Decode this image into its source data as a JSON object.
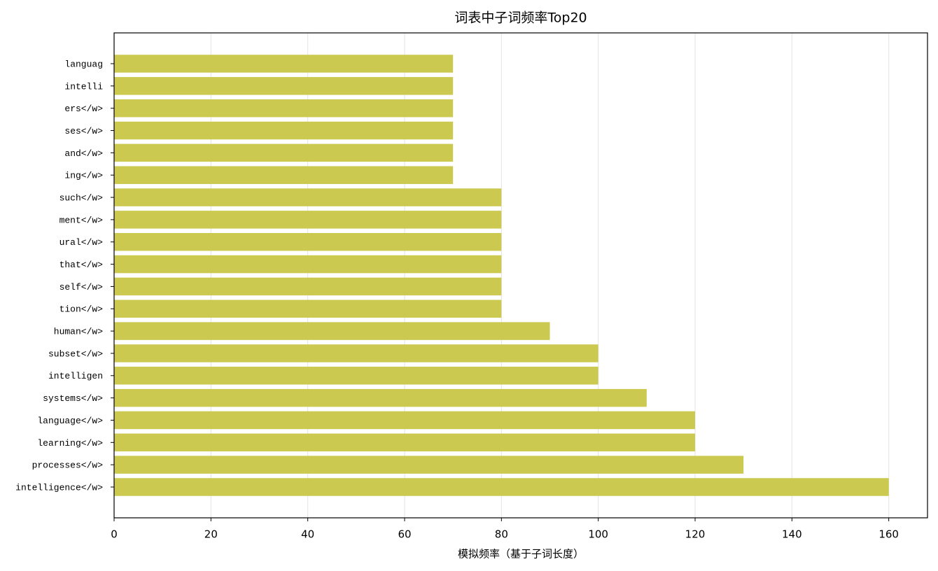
{
  "chart_data": {
    "type": "barh",
    "title": "词表中子词频率Top20",
    "x_label": "模拟频率（基于子词长度）",
    "categories": [
      "languag",
      "intelli",
      "ers</w>",
      "ses</w>",
      "and</w>",
      "ing</w>",
      "such</w>",
      "ment</w>",
      "ural</w>",
      "that</w>",
      "self</w>",
      "tion</w>",
      "human</w>",
      "subset</w>",
      "intelligen",
      "systems</w>",
      "language</w>",
      "learning</w>",
      "processes</w>",
      "intelligence</w>"
    ],
    "values": [
      70,
      70,
      70,
      70,
      70,
      70,
      80,
      80,
      80,
      80,
      80,
      80,
      90,
      100,
      100,
      110,
      120,
      120,
      130,
      160
    ],
    "color": "#cbc94f",
    "xlim": [
      0,
      168
    ],
    "xticks": [
      0,
      20,
      40,
      60,
      80,
      100,
      120,
      140,
      160
    ],
    "grid": true
  }
}
